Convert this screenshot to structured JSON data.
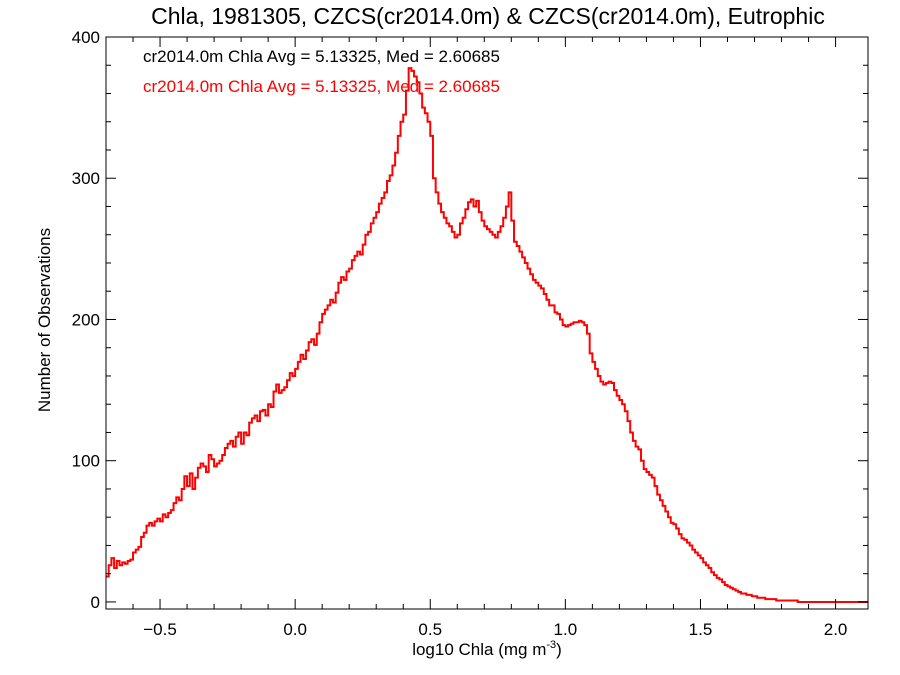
{
  "chart_data": {
    "type": "histogram",
    "title": "Chla, 1981305, CZCS(cr2014.0m) & CZCS(cr2014.0m), Eutrophic",
    "xlabel": "log10 Chla (mg m",
    "xlabel_sup": "-3",
    "xlabel_end": ")",
    "ylabel": "Number of Observations",
    "xlim": [
      -0.7,
      2.12
    ],
    "ylim": [
      -5,
      400
    ],
    "x_ticks": [
      -0.5,
      0.0,
      0.5,
      1.0,
      1.5,
      2.0
    ],
    "x_tick_labels": [
      "−0.5",
      "0.0",
      "0.5",
      "1.0",
      "1.5",
      "2.0"
    ],
    "y_ticks": [
      0,
      100,
      200,
      300,
      400
    ],
    "y_tick_labels": [
      "0",
      "100",
      "200",
      "300",
      "400"
    ],
    "annotations": [
      {
        "text": "cr2014.0m Chla Avg = 5.13325, Med = 2.60685",
        "color": "#000000"
      },
      {
        "text": "cr2014.0m Chla Avg = 5.13325, Med = 2.60685",
        "color": "#ff0000"
      }
    ],
    "bin_start": -0.7,
    "bin_width": 0.01,
    "series": [
      {
        "color": "#ff0000",
        "values": [
          18,
          26,
          31,
          24,
          29,
          26,
          28,
          27,
          29,
          30,
          35,
          37,
          39,
          46,
          49,
          54,
          56,
          54,
          57,
          59,
          57,
          62,
          60,
          63,
          65,
          70,
          74,
          72,
          80,
          89,
          82,
          91,
          80,
          88,
          95,
          98,
          96,
          92,
          104,
          101,
          96,
          98,
          100,
          104,
          109,
          112,
          114,
          110,
          117,
          120,
          112,
          120,
          118,
          127,
          130,
          132,
          128,
          135,
          136,
          132,
          140,
          138,
          149,
          154,
          148,
          150,
          152,
          157,
          162,
          160,
          165,
          170,
          175,
          172,
          178,
          184,
          186,
          182,
          190,
          198,
          204,
          207,
          210,
          214,
          212,
          219,
          226,
          230,
          228,
          234,
          236,
          242,
          245,
          248,
          246,
          253,
          260,
          262,
          268,
          272,
          276,
          282,
          286,
          290,
          298,
          302,
          309,
          318,
          330,
          340,
          345,
          362,
          378,
          376,
          372,
          368,
          360,
          350,
          346,
          340,
          330,
          300,
          290,
          282,
          276,
          272,
          268,
          266,
          262,
          258,
          260,
          268,
          272,
          278,
          283,
          285,
          280,
          284,
          276,
          270,
          266,
          264,
          262,
          260,
          258,
          262,
          266,
          272,
          280,
          290,
          270,
          255,
          252,
          248,
          244,
          240,
          236,
          232,
          228,
          226,
          224,
          222,
          218,
          214,
          210,
          210,
          205,
          204,
          200,
          196,
          195,
          196,
          197,
          198,
          198,
          199,
          198,
          196,
          190,
          176,
          170,
          165,
          160,
          156,
          154,
          155,
          156,
          155,
          150,
          146,
          143,
          140,
          135,
          128,
          120,
          114,
          110,
          108,
          100,
          94,
          92,
          90,
          88,
          82,
          76,
          72,
          68,
          64,
          60,
          56,
          55,
          52,
          48,
          45,
          44,
          42,
          40,
          37,
          35,
          33,
          31,
          28,
          26,
          24,
          21,
          19,
          17,
          16,
          14,
          12,
          11,
          10,
          9,
          8,
          7,
          6,
          6,
          5,
          5,
          4,
          4,
          3,
          3,
          3,
          2,
          2,
          2,
          2,
          1,
          1,
          1,
          1,
          1,
          1,
          1,
          1,
          0,
          0,
          0,
          0,
          0,
          0,
          0,
          0,
          0,
          0,
          0,
          0,
          0,
          0,
          0,
          0,
          0,
          0,
          0,
          0,
          0,
          0,
          0,
          0,
          0,
          0,
          0,
          0,
          0
        ]
      }
    ],
    "colors": {
      "axis": "#000000",
      "series": "#ff0000"
    }
  }
}
